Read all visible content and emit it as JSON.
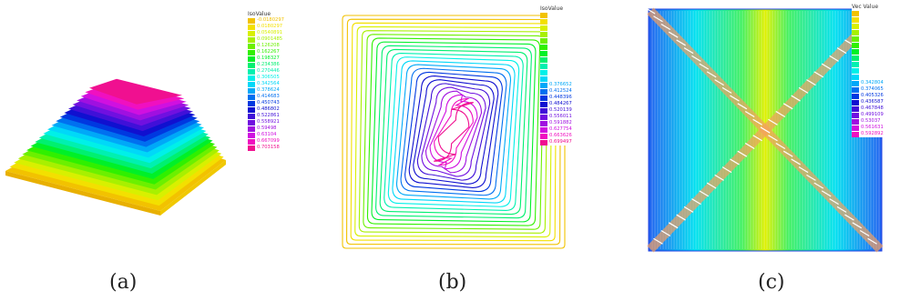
{
  "captions": {
    "a": "(a)",
    "b": "(b)",
    "c": "(c)"
  },
  "panel_a": {
    "legend_title": "IsoValue",
    "legend_values": [
      "-0.0180297",
      "0.0180297",
      "0.0540891",
      "0.0901485",
      "0.126208",
      "0.162267",
      "0.198327",
      "0.234386",
      "0.270446",
      "0.306505",
      "0.342564",
      "0.378624",
      "0.414683",
      "0.450743",
      "0.486802",
      "0.522861",
      "0.558921",
      "0.59498",
      "0.63104",
      "0.667099",
      "0.703158"
    ]
  },
  "panel_b": {
    "legend_title": "IsoValue",
    "legend_values": [
      "",
      "",
      "",
      "",
      "",
      "",
      "",
      "",
      "",
      "",
      "",
      "0.376652",
      "0.412524",
      "0.448396",
      "0.484267",
      "0.520139",
      "0.556011",
      "0.591882",
      "0.627754",
      "0.663626",
      "0.699497"
    ]
  },
  "panel_c": {
    "legend_title": "Vec Value",
    "legend_values": [
      "",
      "",
      "",
      "",
      "",
      "",
      "",
      "",
      "",
      "",
      "",
      "0.342804",
      "0.374065",
      "0.405326",
      "0.436587",
      "0.467848",
      "0.499109",
      "0.53037",
      "0.561631",
      "0.592892"
    ]
  },
  "colors": {
    "scale": [
      "#f2c200",
      "#f3e000",
      "#d8f000",
      "#a8f000",
      "#6cf000",
      "#30f000",
      "#00f028",
      "#00f070",
      "#00f0b0",
      "#00f0e8",
      "#00d8f8",
      "#00a8f8",
      "#0070f0",
      "#0038e0",
      "#1010d0",
      "#4010d8",
      "#7010e0",
      "#a010e0",
      "#d010e0",
      "#f010c0",
      "#f01090"
    ]
  }
}
